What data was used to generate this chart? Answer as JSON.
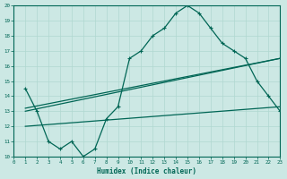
{
  "xlabel": "Humidex (Indice chaleur)",
  "bg_color": "#cce8e4",
  "grid_color": "#b0d8d0",
  "line_color": "#006655",
  "xlim": [
    0,
    23
  ],
  "ylim": [
    10,
    20
  ],
  "xticks": [
    0,
    1,
    2,
    3,
    4,
    5,
    6,
    7,
    8,
    9,
    10,
    11,
    12,
    13,
    14,
    15,
    16,
    17,
    18,
    19,
    20,
    21,
    22,
    23
  ],
  "yticks": [
    10,
    11,
    12,
    13,
    14,
    15,
    16,
    17,
    18,
    19,
    20
  ],
  "line1_x": [
    1,
    2,
    3,
    4,
    5,
    6,
    7,
    8,
    9,
    10,
    11,
    12,
    13,
    14,
    15,
    16,
    17,
    18,
    19,
    20,
    21,
    22,
    23
  ],
  "line1_y": [
    14.5,
    13.0,
    11.0,
    10.5,
    11.0,
    10.0,
    10.5,
    12.5,
    13.3,
    16.5,
    17.0,
    18.0,
    18.5,
    19.5,
    20.0,
    19.5,
    18.5,
    17.5,
    17.0,
    16.5,
    15.0,
    14.0,
    13.0
  ],
  "line2_x": [
    1,
    23
  ],
  "line2_y": [
    13.2,
    16.5
  ],
  "line3_x": [
    1,
    23
  ],
  "line3_y": [
    13.0,
    16.5
  ],
  "line4_x": [
    1,
    23
  ],
  "line4_y": [
    12.0,
    13.3
  ]
}
